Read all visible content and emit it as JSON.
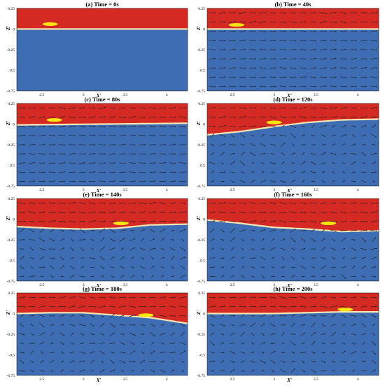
{
  "figure": {
    "x_axis_label": "X'",
    "y_axis_label": "Z'",
    "x_ticks": [
      "2.5",
      "3",
      "3.5",
      "4"
    ],
    "y_ticks": [
      "0.25",
      "0",
      "-0.25",
      "-0.5",
      "-0.75"
    ],
    "colors": {
      "air": "#d42a23",
      "water": "#3e6db3",
      "interface": "#f3e6b4",
      "body": "#f7e612",
      "vector": "#1b1b1b"
    }
  },
  "chart_data": [
    {
      "type": "heatmap",
      "title": "(a) Time = 0s",
      "xlim": [
        2.2,
        4.25
      ],
      "ylim": [
        -0.75,
        0.25
      ],
      "surface": {
        "x": [
          2.2,
          4.25
        ],
        "z": [
          0.0,
          0.0
        ]
      },
      "body": {
        "x": 2.6,
        "z": 0.06
      },
      "vector_field": false
    },
    {
      "type": "heatmap",
      "title": "(b) Time = 40s",
      "xlim": [
        2.2,
        4.25
      ],
      "ylim": [
        -0.75,
        0.25
      ],
      "surface": {
        "x": [
          2.2,
          4.25
        ],
        "z": [
          0.0,
          0.0
        ]
      },
      "body": {
        "x": 2.55,
        "z": 0.05
      },
      "vector_field": true
    },
    {
      "type": "heatmap",
      "title": "(c) Time = 80s",
      "xlim": [
        2.2,
        4.25
      ],
      "ylim": [
        -0.75,
        0.25
      ],
      "surface": {
        "x": [
          2.2,
          4.25
        ],
        "z": [
          -0.01,
          0.01
        ]
      },
      "body": {
        "x": 2.65,
        "z": 0.05
      },
      "vector_field": true
    },
    {
      "type": "heatmap",
      "title": "(d) Time = 120s",
      "xlim": [
        2.2,
        4.25
      ],
      "ylim": [
        -0.75,
        0.25
      ],
      "surface": {
        "x": [
          2.2,
          2.6,
          3.0,
          3.4,
          3.8,
          4.25
        ],
        "z": [
          -0.13,
          -0.09,
          -0.03,
          0.02,
          0.05,
          0.06
        ]
      },
      "body": {
        "x": 3.0,
        "z": 0.02
      },
      "vector_field": true
    },
    {
      "type": "heatmap",
      "title": "(e) Time = 140s",
      "xlim": [
        2.2,
        4.25
      ],
      "ylim": [
        -0.75,
        0.25
      ],
      "surface": {
        "x": [
          2.2,
          2.6,
          3.0,
          3.4,
          3.8,
          4.25
        ],
        "z": [
          -0.09,
          -0.11,
          -0.12,
          -0.11,
          -0.07,
          -0.06
        ]
      },
      "body": {
        "x": 3.45,
        "z": -0.05
      },
      "vector_field": true
    },
    {
      "type": "heatmap",
      "title": "(f) Time = 160s",
      "xlim": [
        2.2,
        4.25
      ],
      "ylim": [
        -0.75,
        0.25
      ],
      "surface": {
        "x": [
          2.2,
          2.6,
          3.0,
          3.4,
          3.8,
          4.25
        ],
        "z": [
          -0.01,
          -0.05,
          -0.1,
          -0.12,
          -0.15,
          -0.14
        ]
      },
      "body": {
        "x": 3.65,
        "z": -0.05
      },
      "vector_field": true
    },
    {
      "type": "heatmap",
      "title": "(g) Time = 180s",
      "xlim": [
        2.2,
        4.25
      ],
      "ylim": [
        -0.75,
        0.25
      ],
      "surface": {
        "x": [
          2.2,
          2.6,
          3.0,
          3.4,
          3.8,
          4.25
        ],
        "z": [
          0.0,
          0.01,
          0.01,
          -0.02,
          -0.05,
          -0.12
        ]
      },
      "body": {
        "x": 3.75,
        "z": -0.02
      },
      "vector_field": true
    },
    {
      "type": "heatmap",
      "title": "(h) Time = 200s",
      "xlim": [
        2.2,
        4.25
      ],
      "ylim": [
        -0.75,
        0.25
      ],
      "surface": {
        "x": [
          2.2,
          2.6,
          3.0,
          3.4,
          3.8,
          4.25
        ],
        "z": [
          0.0,
          0.0,
          0.0,
          0.01,
          0.02,
          0.02
        ]
      },
      "body": {
        "x": 3.85,
        "z": 0.05
      },
      "vector_field": true
    }
  ]
}
